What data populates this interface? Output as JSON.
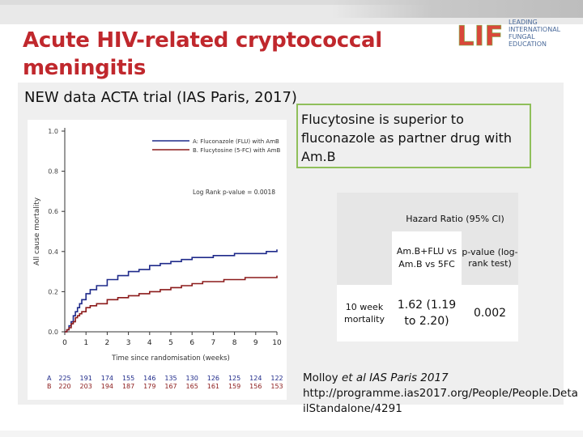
{
  "slide": {
    "title_line1": "Acute HIV-related cryptococcal",
    "title_line2": "meningitis",
    "subtitle": "NEW data ACTA trial (IAS Paris, 2017)",
    "brand_color": "#c0282d",
    "accent_green": "#8fbf5a"
  },
  "logo": {
    "mark_text": "LIFE",
    "lines": [
      "LEADING",
      "INTERNATIONAL",
      "FUNGAL",
      "EDUCATION"
    ]
  },
  "callout": {
    "text": "Flucytosine is superior to fluconazole as partner drug with Am.B"
  },
  "hr_table": {
    "header": "Hazard Ratio (95% CI)",
    "col1_head": "Am.B+FLU vs Am.B vs 5FC",
    "col2_head": "p-value (log-rank test)",
    "row_label": "10 week mortality",
    "row_value": "1.62 (1.19 to 2.20)",
    "row_p": "0.002"
  },
  "citation": {
    "prefix": "Molloy ",
    "italic": "et al IAS Paris 2017",
    "url": "http://programme.ias2017.org/People/People.DetailStandalone/4291"
  },
  "chart_data": {
    "type": "line",
    "title": "",
    "xlabel": "Time since randomisation (weeks)",
    "ylabel": "All cause mortality",
    "xlim": [
      0,
      10
    ],
    "ylim": [
      0,
      1.0
    ],
    "x_ticks": [
      "0",
      "1",
      "2",
      "3",
      "4",
      "5",
      "6",
      "7",
      "8",
      "9",
      "10"
    ],
    "y_ticks": [
      "0.0",
      "0.2",
      "0.4",
      "0.6",
      "0.8",
      "1.0"
    ],
    "legend_position": "top-right",
    "annotation": "Log Rank p-value = 0.0018",
    "series": [
      {
        "name": "A: Fluconazole (FLU) with AmB",
        "color": "#1f2a8a",
        "x": [
          0,
          0.1,
          0.2,
          0.3,
          0.4,
          0.5,
          0.6,
          0.7,
          0.8,
          1.0,
          1.2,
          1.5,
          2.0,
          2.5,
          3.0,
          3.5,
          4.0,
          4.5,
          5.0,
          5.5,
          6.0,
          6.5,
          7.0,
          7.5,
          8.0,
          8.5,
          9.0,
          9.5,
          10.0
        ],
        "y": [
          0,
          0.01,
          0.03,
          0.05,
          0.08,
          0.1,
          0.12,
          0.14,
          0.16,
          0.19,
          0.21,
          0.23,
          0.26,
          0.28,
          0.3,
          0.31,
          0.33,
          0.34,
          0.35,
          0.36,
          0.37,
          0.37,
          0.38,
          0.38,
          0.39,
          0.39,
          0.39,
          0.4,
          0.41
        ]
      },
      {
        "name": "B. Flucytosine (5-FC) with AmB",
        "color": "#8b1a1a",
        "x": [
          0,
          0.1,
          0.2,
          0.3,
          0.4,
          0.5,
          0.6,
          0.7,
          0.8,
          1.0,
          1.2,
          1.5,
          2.0,
          2.5,
          3.0,
          3.5,
          4.0,
          4.5,
          5.0,
          5.5,
          6.0,
          6.5,
          7.0,
          7.5,
          8.0,
          8.5,
          9.0,
          9.5,
          10.0
        ],
        "y": [
          0,
          0.01,
          0.02,
          0.04,
          0.05,
          0.07,
          0.08,
          0.09,
          0.1,
          0.12,
          0.13,
          0.14,
          0.16,
          0.17,
          0.18,
          0.19,
          0.2,
          0.21,
          0.22,
          0.23,
          0.24,
          0.25,
          0.25,
          0.26,
          0.26,
          0.27,
          0.27,
          0.27,
          0.28
        ]
      }
    ],
    "at_risk": {
      "x_ticks": [
        "0",
        "1",
        "2",
        "3",
        "4",
        "5",
        "6",
        "7",
        "8",
        "9",
        "10"
      ],
      "rows": [
        {
          "label": "A",
          "color": "#1f2a8a",
          "values": [
            "225",
            "191",
            "174",
            "155",
            "146",
            "135",
            "130",
            "126",
            "125",
            "124",
            "122"
          ]
        },
        {
          "label": "B",
          "color": "#8b1a1a",
          "values": [
            "220",
            "203",
            "194",
            "187",
            "179",
            "167",
            "165",
            "161",
            "159",
            "156",
            "153"
          ]
        }
      ]
    }
  }
}
